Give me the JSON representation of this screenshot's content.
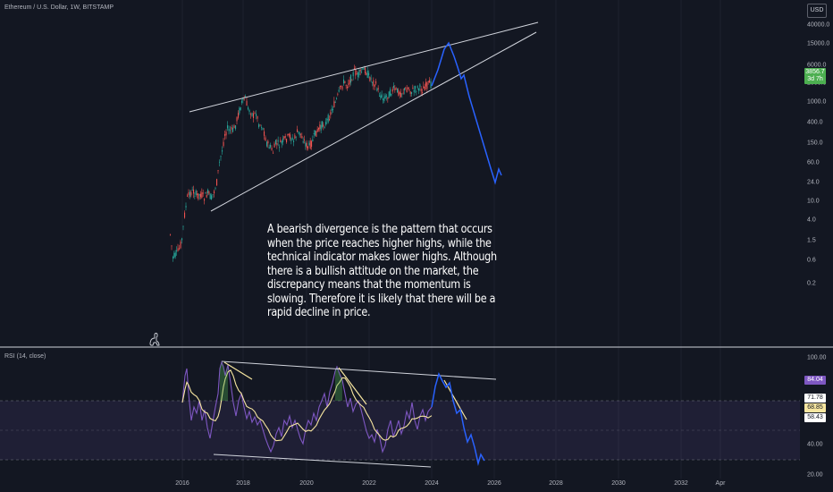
{
  "symbol": "Ethereum / U.S. Dollar, 1W, BITSTAMP",
  "currency_button": "USD",
  "annotation": "A bearish divergence is the pattern that occurs when the price reaches higher highs, while the technical indicator makes lower highs. Although there is a bullish attitude on the market, the discrepancy means that the momentum is slowing. Therefore it is likely that there will be a rapid decline in price.",
  "rsi_title": "RSI (14, close)",
  "price_label": {
    "value": "3856.7",
    "countdown": "3d 7h",
    "color": "#4caf50"
  },
  "rsi_labels": [
    {
      "value": "84.04",
      "bg": "#7e57c2",
      "fg": "#ffffff"
    },
    {
      "value": "71.78",
      "bg": "#ffffff",
      "fg": "#131722"
    },
    {
      "value": "68.85",
      "bg": "#f7e6a0",
      "fg": "#131722"
    },
    {
      "value": "58.43",
      "bg": "#ffffff",
      "fg": "#131722"
    }
  ],
  "colors": {
    "up": "#26a69a",
    "down": "#ef5350",
    "rsi": "#7e57c2",
    "rsi_ma": "#f7e6a0",
    "projection": "#2962ff",
    "band": "#7e57c2"
  },
  "chart_data": [
    {
      "type": "candlestick",
      "title": "Ethereum / U.S. Dollar, 1W, BITSTAMP",
      "scale": "log",
      "y_ticks": [
        "40000.0",
        "15000.0",
        "6000.0",
        "2500.0",
        "1000.0",
        "400.0",
        "150.0",
        "60.0",
        "24.0",
        "10.0",
        "4.0",
        "1.5",
        "0.6",
        "0.2"
      ],
      "x_ticks": [
        "2016",
        "2018",
        "2020",
        "2022",
        "2024",
        "2026",
        "2028",
        "2030",
        "2032",
        "Apr"
      ],
      "approx_close": [
        {
          "x": "2015-09",
          "y": 1.1
        },
        {
          "x": "2016-03",
          "y": 10
        },
        {
          "x": "2016-12",
          "y": 8
        },
        {
          "x": "2017-06",
          "y": 300
        },
        {
          "x": "2018-01",
          "y": 1100
        },
        {
          "x": "2018-12",
          "y": 100
        },
        {
          "x": "2019-06",
          "y": 300
        },
        {
          "x": "2020-03",
          "y": 120
        },
        {
          "x": "2021-05",
          "y": 3900
        },
        {
          "x": "2021-11",
          "y": 4800
        },
        {
          "x": "2022-06",
          "y": 1000
        },
        {
          "x": "2023-06",
          "y": 1800
        },
        {
          "x": "2024-03",
          "y": 3900
        }
      ],
      "projection": [
        {
          "x": "2024-06",
          "y": 12000
        },
        {
          "x": "2024-10",
          "y": 16000
        },
        {
          "x": "2025-03",
          "y": 4000
        },
        {
          "x": "2025-10",
          "y": 150
        },
        {
          "x": "2026-04",
          "y": 25
        },
        {
          "x": "2026-06",
          "y": 55
        }
      ]
    },
    {
      "type": "line",
      "title": "RSI (14, close)",
      "y_ticks": [
        "100.00",
        "40.00",
        "20.00"
      ],
      "series": [
        {
          "name": "RSI",
          "values": [
            {
              "x": "2016-03",
              "y": 88
            },
            {
              "x": "2017-05",
              "y": 95
            },
            {
              "x": "2018-12",
              "y": 22
            },
            {
              "x": "2021-02",
              "y": 92
            },
            {
              "x": "2022-06",
              "y": 25
            },
            {
              "x": "2024-03",
              "y": 84
            }
          ]
        }
      ]
    }
  ]
}
